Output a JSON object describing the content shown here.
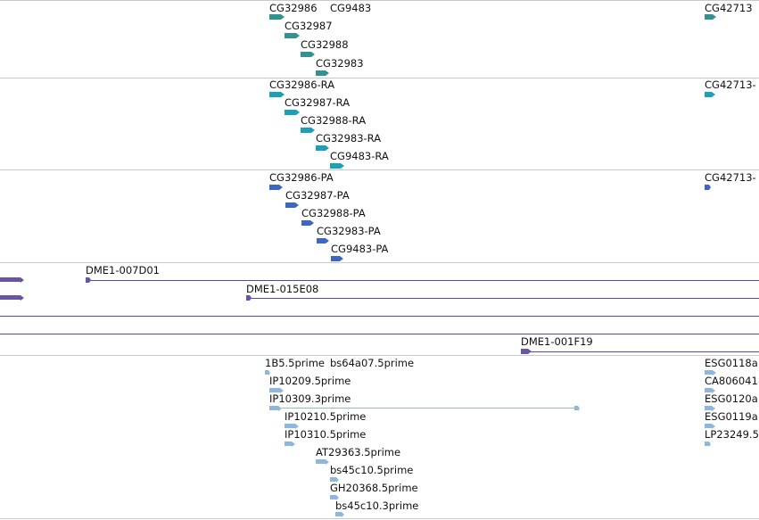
{
  "colors": {
    "gene": "#33918f",
    "transcript": "#1aa1b8",
    "protein": "#3e67c4",
    "clone": "#6a54a4",
    "est": "#8fb7de",
    "separator": "#c9c9c9"
  },
  "tracks": {
    "genes": [
      {
        "name": "CG32986"
      },
      {
        "name": "CG9483"
      },
      {
        "name": "CG42713"
      },
      {
        "name": "CG32987"
      },
      {
        "name": "CG32988"
      },
      {
        "name": "CG32983"
      }
    ],
    "transcripts": [
      {
        "name": "CG32986-RA"
      },
      {
        "name": "CG42713-"
      },
      {
        "name": "CG32987-RA"
      },
      {
        "name": "CG32988-RA"
      },
      {
        "name": "CG32983-RA"
      },
      {
        "name": "CG9483-RA"
      }
    ],
    "proteins": [
      {
        "name": "CG32986-PA"
      },
      {
        "name": "CG42713-"
      },
      {
        "name": "CG32987-PA"
      },
      {
        "name": "CG32988-PA"
      },
      {
        "name": "CG32983-PA"
      },
      {
        "name": "CG9483-PA"
      }
    ],
    "clones": [
      {
        "name": "DME1-007D01"
      },
      {
        "name": "DME1-015E08"
      },
      {
        "name": "DME1-001F19"
      }
    ],
    "ests": [
      {
        "name": "1B5.5prime"
      },
      {
        "name": "bs64a07.5prime"
      },
      {
        "name": "ESG0118a"
      },
      {
        "name": "IP10209.5prime"
      },
      {
        "name": "CA806041"
      },
      {
        "name": "IP10309.3prime"
      },
      {
        "name": "ESG0120a"
      },
      {
        "name": "IP10210.5prime"
      },
      {
        "name": "ESG0119a"
      },
      {
        "name": "IP10310.5prime"
      },
      {
        "name": "LP23249.5"
      },
      {
        "name": "AT29363.5prime"
      },
      {
        "name": "bs45c10.5prime"
      },
      {
        "name": "GH20368.5prime"
      },
      {
        "name": "bs45c10.3prime"
      }
    ]
  }
}
